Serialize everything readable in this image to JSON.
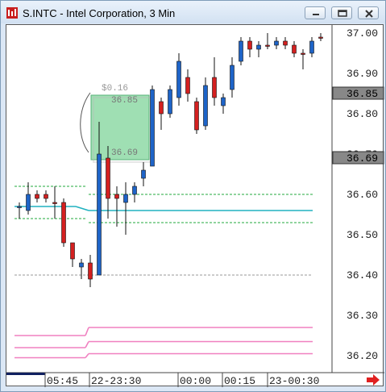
{
  "window": {
    "title": "S.INTC - Intel Corporation, 3 Min",
    "accent_color": "#e02020"
  },
  "controls": {
    "minimize_icon": "minimize-icon",
    "restore_icon": "restore-icon",
    "close_icon": "close-icon",
    "scroll_right_icon": "red-right-arrow-icon"
  },
  "chart_data": {
    "type": "candlestick",
    "ylim": [
      36.15,
      37.02
    ],
    "y_ticks": [
      "37.00",
      "36.90",
      "36.80",
      "36.70",
      "36.60",
      "36.50",
      "36.40",
      "36.30",
      "36.20"
    ],
    "price_markers": [
      "36.85",
      "36.69"
    ],
    "x_labels": [
      "05:45",
      "22-23:30",
      "00:00",
      "00:15",
      "23-00:30"
    ],
    "measure_box": {
      "delta": "$0.16",
      "high": "36.85",
      "low": "36.69"
    },
    "candles": [
      {
        "o": 36.57,
        "h": 36.58,
        "l": 36.54,
        "c": 36.57,
        "up": true
      },
      {
        "o": 36.56,
        "h": 36.63,
        "l": 36.55,
        "c": 36.6,
        "up": true
      },
      {
        "o": 36.6,
        "h": 36.61,
        "l": 36.58,
        "c": 36.59,
        "up": false
      },
      {
        "o": 36.6,
        "h": 36.61,
        "l": 36.58,
        "c": 36.59,
        "up": false
      },
      {
        "o": 36.58,
        "h": 36.62,
        "l": 36.54,
        "c": 36.58,
        "up": false
      },
      {
        "o": 36.58,
        "h": 36.59,
        "l": 36.47,
        "c": 36.48,
        "up": false
      },
      {
        "o": 36.48,
        "h": 36.48,
        "l": 36.42,
        "c": 36.44,
        "up": false
      },
      {
        "o": 36.42,
        "h": 36.44,
        "l": 36.39,
        "c": 36.43,
        "up": true
      },
      {
        "o": 36.43,
        "h": 36.45,
        "l": 36.37,
        "c": 36.39,
        "up": false
      },
      {
        "o": 36.4,
        "h": 36.78,
        "l": 36.4,
        "c": 36.7,
        "up": true
      },
      {
        "o": 36.69,
        "h": 36.72,
        "l": 36.54,
        "c": 36.59,
        "up": false
      },
      {
        "o": 36.6,
        "h": 36.62,
        "l": 36.52,
        "c": 36.59,
        "up": false
      },
      {
        "o": 36.58,
        "h": 36.63,
        "l": 36.5,
        "c": 36.6,
        "up": true
      },
      {
        "o": 36.6,
        "h": 36.63,
        "l": 36.58,
        "c": 36.62,
        "up": true
      },
      {
        "o": 36.64,
        "h": 36.68,
        "l": 36.62,
        "c": 36.66,
        "up": true
      },
      {
        "o": 36.67,
        "h": 36.87,
        "l": 36.67,
        "c": 36.86,
        "up": true
      },
      {
        "o": 36.83,
        "h": 36.84,
        "l": 36.76,
        "c": 36.8,
        "up": false
      },
      {
        "o": 36.8,
        "h": 36.87,
        "l": 36.79,
        "c": 36.86,
        "up": true
      },
      {
        "o": 36.84,
        "h": 36.95,
        "l": 36.82,
        "c": 36.93,
        "up": true
      },
      {
        "o": 36.89,
        "h": 36.91,
        "l": 36.83,
        "c": 36.85,
        "up": false
      },
      {
        "o": 36.83,
        "h": 36.84,
        "l": 36.75,
        "c": 36.76,
        "up": false
      },
      {
        "o": 36.77,
        "h": 36.89,
        "l": 36.76,
        "c": 36.87,
        "up": true
      },
      {
        "o": 36.89,
        "h": 36.94,
        "l": 36.82,
        "c": 36.84,
        "up": false
      },
      {
        "o": 36.82,
        "h": 36.85,
        "l": 36.8,
        "c": 36.84,
        "up": true
      },
      {
        "o": 36.86,
        "h": 36.94,
        "l": 36.84,
        "c": 36.92,
        "up": true
      },
      {
        "o": 36.93,
        "h": 36.99,
        "l": 36.92,
        "c": 36.98,
        "up": true
      },
      {
        "o": 36.98,
        "h": 36.99,
        "l": 36.94,
        "c": 36.96,
        "up": false
      },
      {
        "o": 36.96,
        "h": 36.98,
        "l": 36.94,
        "c": 36.97,
        "up": true
      },
      {
        "o": 36.97,
        "h": 37.0,
        "l": 36.96,
        "c": 36.97,
        "up": false
      },
      {
        "o": 36.97,
        "h": 36.99,
        "l": 36.96,
        "c": 36.98,
        "up": true
      },
      {
        "o": 36.98,
        "h": 36.99,
        "l": 36.96,
        "c": 36.97,
        "up": false
      },
      {
        "o": 36.97,
        "h": 36.98,
        "l": 36.94,
        "c": 36.95,
        "up": false
      },
      {
        "o": 36.95,
        "h": 36.96,
        "l": 36.91,
        "c": 36.95,
        "up": false
      },
      {
        "o": 36.95,
        "h": 36.99,
        "l": 36.94,
        "c": 36.98,
        "up": true
      },
      {
        "o": 36.99,
        "h": 37.0,
        "l": 36.98,
        "c": 36.99,
        "up": false
      }
    ],
    "levels": {
      "cyan_vwap": {
        "left": 36.57,
        "right": 36.56,
        "color": "#20b2c0"
      },
      "green_bands": [
        {
          "left": 36.62,
          "right": 36.6,
          "color": "#22a83c"
        },
        {
          "left": 36.54,
          "right": 36.53,
          "color": "#22a83c"
        }
      ],
      "gray_line": {
        "value": 36.4,
        "color": "#9a9a9a"
      },
      "pink_lines": [
        {
          "left": 36.25,
          "right": 36.27,
          "color": "#f080c0"
        },
        {
          "left": 36.22,
          "right": 36.235,
          "color": "#f080c0"
        },
        {
          "left": 36.195,
          "right": 36.205,
          "color": "#f080c0"
        }
      ]
    }
  }
}
